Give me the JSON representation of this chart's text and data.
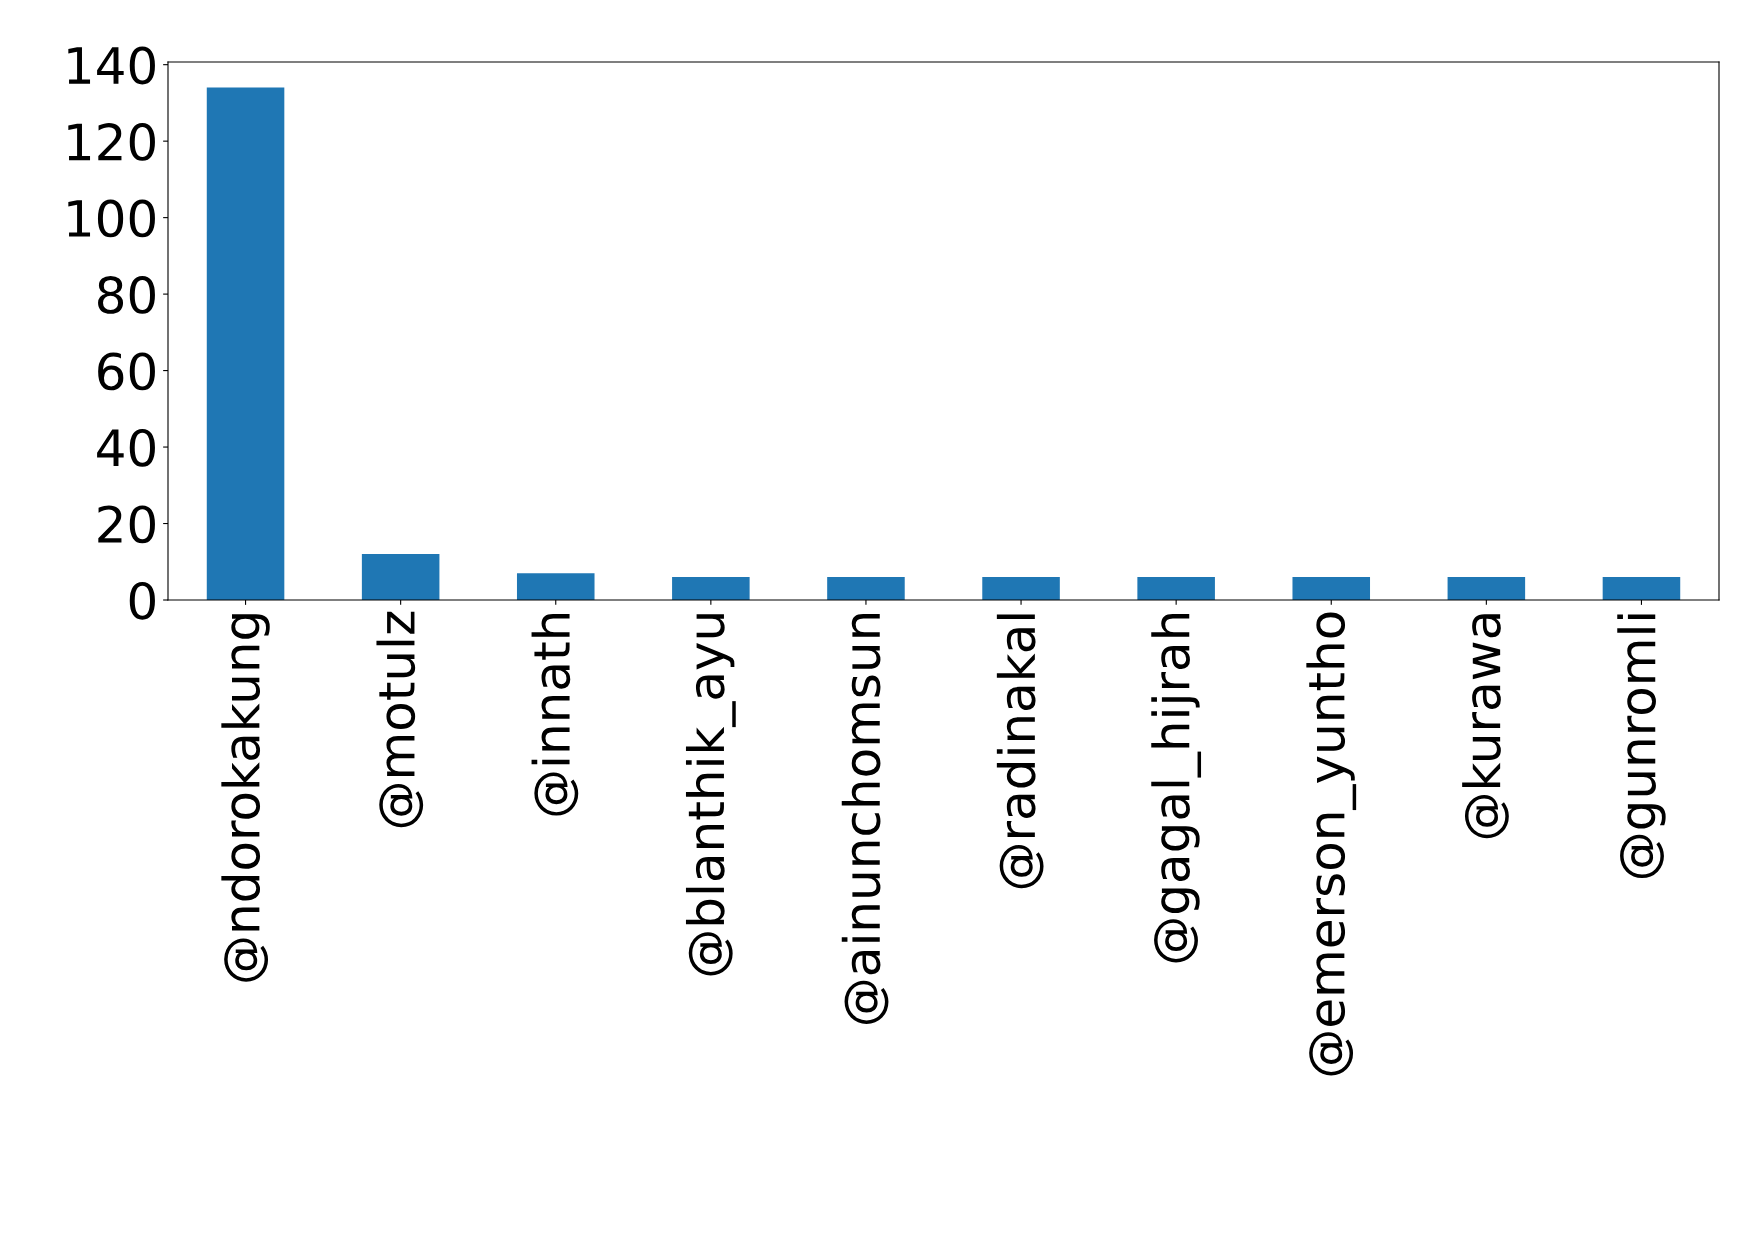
{
  "chart_data": {
    "type": "bar",
    "categories": [
      "@ndorokakung",
      "@motulz",
      "@innath",
      "@blanthik_ayu",
      "@ainunchomsun",
      "@radinakal",
      "@gagal_hijrah",
      "@emerson_yuntho",
      "@kurawa",
      "@gunromli"
    ],
    "values": [
      134,
      12,
      7,
      6,
      6,
      6,
      6,
      6,
      6,
      6
    ],
    "color": "#1f77b4",
    "ylim": [
      0,
      140.7
    ],
    "yticks": [
      0,
      20,
      40,
      60,
      80,
      100,
      120,
      140
    ],
    "grid": false,
    "legend": false
  }
}
